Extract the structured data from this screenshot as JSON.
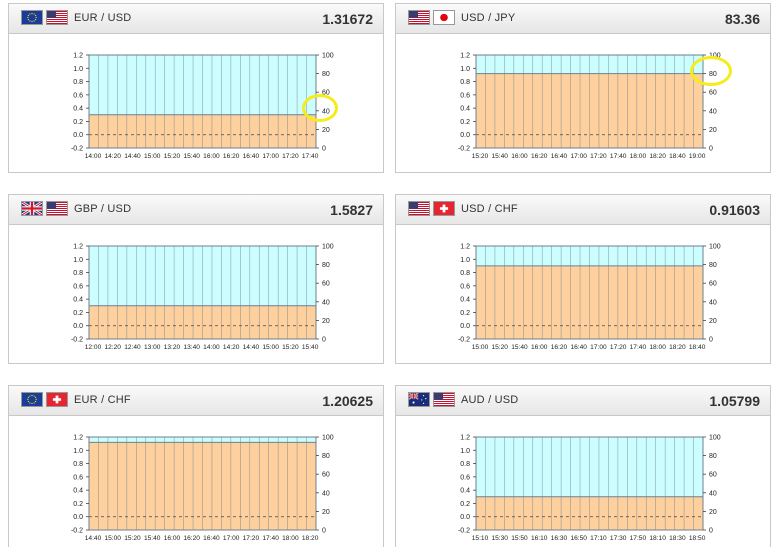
{
  "chart_data": [
    {
      "type": "area",
      "pair": "EUR / USD",
      "rate": "1.31672",
      "flags": [
        "eu-flag-icon",
        "us-flag-icon"
      ],
      "x": [
        "14:00",
        "14:20",
        "14:40",
        "15:00",
        "15:20",
        "15:40",
        "16:00",
        "16:20",
        "16:40",
        "17:00",
        "17:20",
        "17:40"
      ],
      "left_ticks": [
        "1.2",
        "1.0",
        "0.8",
        "0.6",
        "0.4",
        "0.2",
        "0.0",
        "-0.2"
      ],
      "right_ticks": [
        "100",
        "80",
        "60",
        "40",
        "20",
        "0"
      ],
      "ylim": [
        -0.2,
        1.2
      ],
      "y2lim": [
        0,
        100
      ],
      "y": 0.3
    },
    {
      "type": "area",
      "pair": "USD / JPY",
      "rate": "83.36",
      "flags": [
        "us-flag-icon",
        "jp-flag-icon"
      ],
      "x": [
        "15:20",
        "15:40",
        "16:00",
        "16:20",
        "16:40",
        "17:00",
        "17:20",
        "17:40",
        "18:00",
        "18:20",
        "18:40",
        "19:00"
      ],
      "left_ticks": [
        "1.2",
        "1.0",
        "0.8",
        "0.6",
        "0.4",
        "0.2",
        "0.0",
        "-0.2"
      ],
      "right_ticks": [
        "100",
        "80",
        "60",
        "40",
        "20",
        "0"
      ],
      "ylim": [
        -0.2,
        1.2
      ],
      "y2lim": [
        0,
        100
      ],
      "y": 0.92
    },
    {
      "type": "area",
      "pair": "GBP / USD",
      "rate": "1.5827",
      "flags": [
        "uk-flag-icon",
        "us-flag-icon"
      ],
      "x": [
        "12:00",
        "12:20",
        "12:40",
        "13:00",
        "13:20",
        "13:40",
        "14:00",
        "14:20",
        "14:40",
        "15:00",
        "15:20",
        "15:40"
      ],
      "left_ticks": [
        "1.2",
        "1.0",
        "0.8",
        "0.6",
        "0.4",
        "0.2",
        "0.0",
        "-0.2"
      ],
      "right_ticks": [
        "100",
        "80",
        "60",
        "40",
        "20",
        "0"
      ],
      "ylim": [
        -0.2,
        1.2
      ],
      "y2lim": [
        0,
        100
      ],
      "y": 0.3
    },
    {
      "type": "area",
      "pair": "USD / CHF",
      "rate": "0.91603",
      "flags": [
        "us-flag-icon",
        "ch-flag-icon"
      ],
      "x": [
        "15:00",
        "15:20",
        "15:40",
        "16:00",
        "16:20",
        "16:40",
        "17:00",
        "17:20",
        "17:40",
        "18:00",
        "18:20",
        "18:40"
      ],
      "left_ticks": [
        "1.2",
        "1.0",
        "0.8",
        "0.6",
        "0.4",
        "0.2",
        "0.0",
        "-0.2"
      ],
      "right_ticks": [
        "100",
        "80",
        "60",
        "40",
        "20",
        "0"
      ],
      "ylim": [
        -0.2,
        1.2
      ],
      "y2lim": [
        0,
        100
      ],
      "y": 0.9
    },
    {
      "type": "area",
      "pair": "EUR / CHF",
      "rate": "1.20625",
      "flags": [
        "eu-flag-icon",
        "ch-flag-icon"
      ],
      "x": [
        "14:40",
        "15:00",
        "15:20",
        "15:40",
        "16:00",
        "16:20",
        "16:40",
        "17:00",
        "17:20",
        "17:40",
        "18:00",
        "18:20"
      ],
      "left_ticks": [
        "1.2",
        "1.0",
        "0.8",
        "0.6",
        "0.4",
        "0.2",
        "0.0",
        "-0.2"
      ],
      "right_ticks": [
        "100",
        "80",
        "60",
        "40",
        "20",
        "0"
      ],
      "ylim": [
        -0.2,
        1.2
      ],
      "y2lim": [
        0,
        100
      ],
      "y": 1.12
    },
    {
      "type": "area",
      "pair": "AUD / USD",
      "rate": "1.05799",
      "flags": [
        "au-flag-icon",
        "us-flag-icon"
      ],
      "x": [
        "15:10",
        "15:30",
        "15:50",
        "16:10",
        "16:30",
        "16:50",
        "17:10",
        "17:30",
        "17:50",
        "18:10",
        "18:30",
        "18:50"
      ],
      "left_ticks": [
        "1.2",
        "1.0",
        "0.8",
        "0.6",
        "0.4",
        "0.2",
        "0.0",
        "-0.2"
      ],
      "right_ticks": [
        "100",
        "80",
        "60",
        "40",
        "20",
        "0"
      ],
      "ylim": [
        -0.2,
        1.2
      ],
      "y2lim": [
        0,
        100
      ],
      "y": 0.3
    }
  ],
  "colors": {
    "upper_fill": "#ccfdff",
    "lower_fill": "#fdd09e",
    "line": "#6f7f8f",
    "highlight": "#f5ec1a"
  }
}
